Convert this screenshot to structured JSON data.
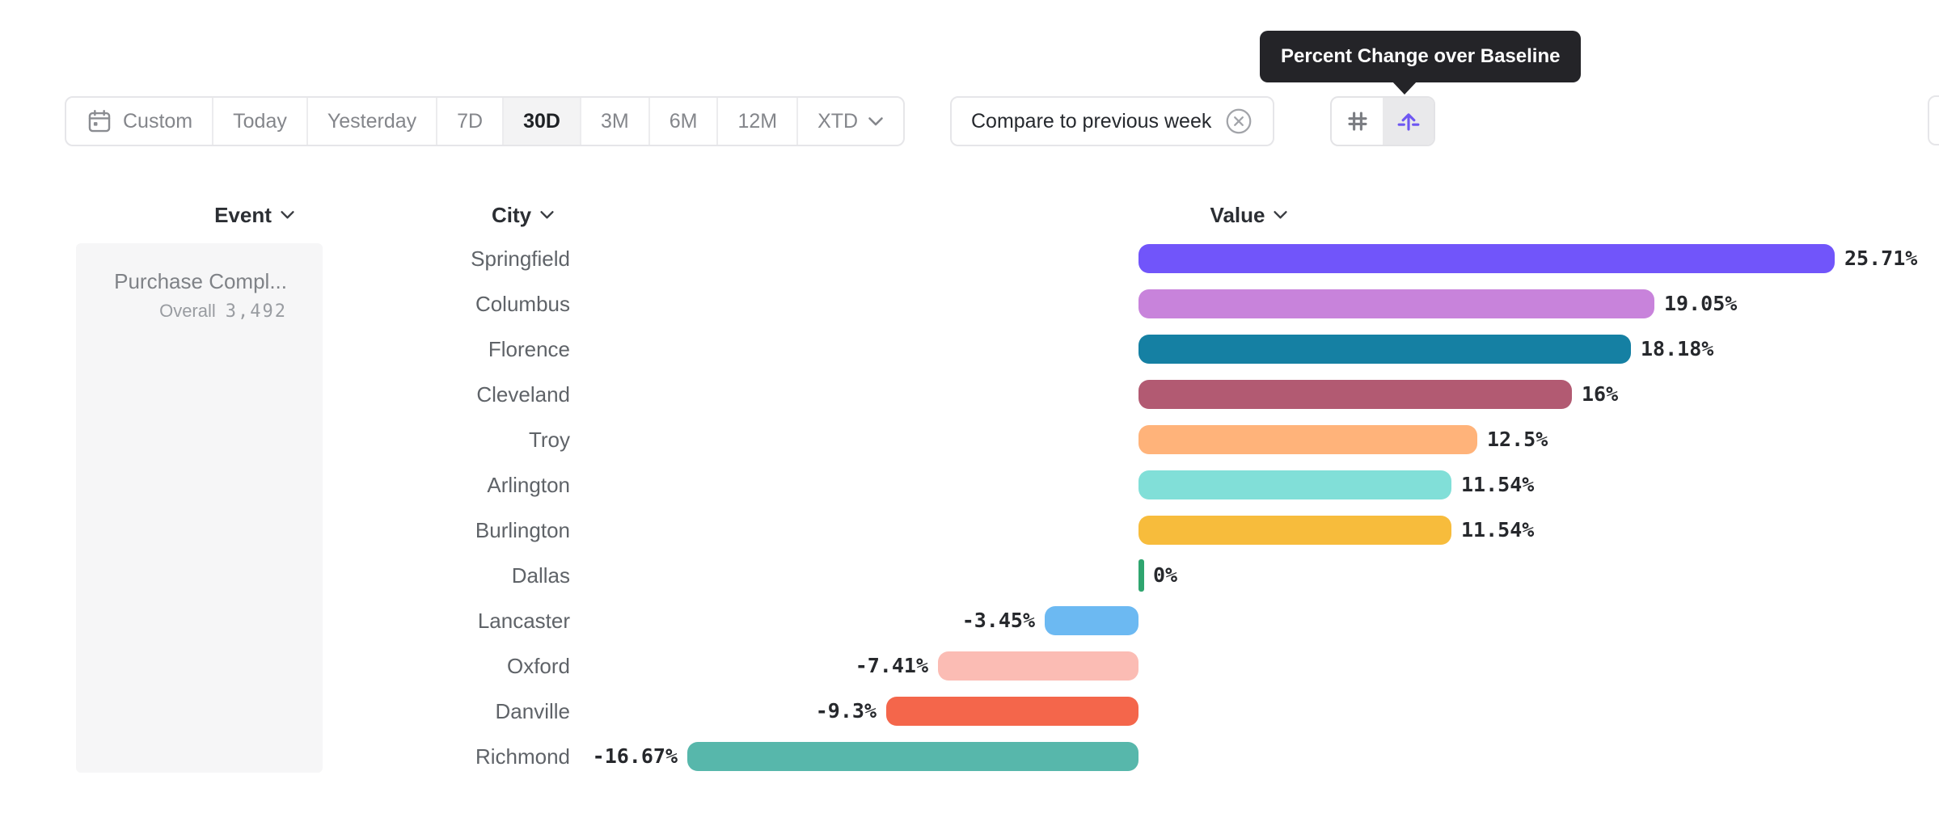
{
  "tooltip": {
    "text": "Percent Change over Baseline"
  },
  "toolbar": {
    "items": [
      {
        "label": "Custom",
        "icon": "calendar-icon"
      },
      {
        "label": "Today"
      },
      {
        "label": "Yesterday"
      },
      {
        "label": "7D"
      },
      {
        "label": "30D"
      },
      {
        "label": "3M"
      },
      {
        "label": "6M"
      },
      {
        "label": "12M"
      },
      {
        "label": "XTD",
        "icon": "chevron-down-icon"
      }
    ],
    "selected": "30D"
  },
  "comparison": {
    "label": "Compare to previous week",
    "clear_icon": "circle-x-icon"
  },
  "view_toggle": {
    "options": [
      {
        "name": "number-view",
        "icon": "hash-icon",
        "selected": false
      },
      {
        "name": "percent-change-view",
        "icon": "arrow-up-from-baseline-icon",
        "selected": true
      }
    ]
  },
  "columns": [
    {
      "label": "Event"
    },
    {
      "label": "City"
    },
    {
      "label": "Value"
    }
  ],
  "event_panel": {
    "event_name": "Purchase Compl...",
    "overall_label": "Overall",
    "overall_value": "3,492"
  },
  "chart_data": {
    "type": "bar",
    "orientation": "horizontal",
    "title": "Percent Change over Baseline",
    "value_unit": "%",
    "baseline": 0,
    "categories": [
      "Springfield",
      "Columbus",
      "Florence",
      "Cleveland",
      "Troy",
      "Arlington",
      "Burlington",
      "Dallas",
      "Lancaster",
      "Oxford",
      "Danville",
      "Richmond"
    ],
    "values": [
      25.71,
      19.05,
      18.18,
      16,
      12.5,
      11.54,
      11.54,
      0,
      -3.45,
      -7.41,
      -9.3,
      -16.67
    ],
    "labels": [
      "25.71%",
      "19.05%",
      "18.18%",
      "16%",
      "12.5%",
      "11.54%",
      "11.54%",
      "0%",
      "-3.45%",
      "-7.41%",
      "-9.3%",
      "-16.67%"
    ],
    "colors": [
      "#7155FA",
      "#C883DB",
      "#1580A3",
      "#B25A72",
      "#FFB37A",
      "#81DFD8",
      "#F7BC3C",
      "#2FA56F",
      "#6CB9F2",
      "#FBBCB4",
      "#F4664B",
      "#57B7AB"
    ]
  }
}
